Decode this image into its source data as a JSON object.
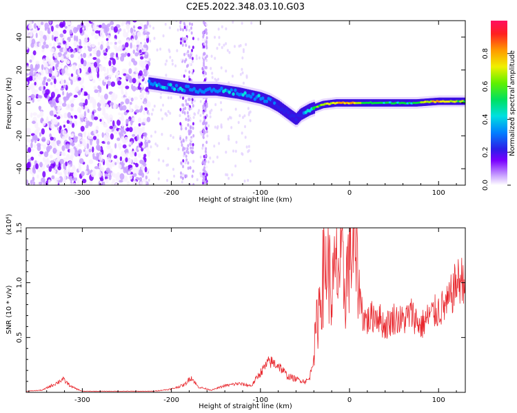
{
  "title": "C2E5.2022.348.03.10.G03",
  "chart_data": [
    {
      "type": "heatmap",
      "xlabel": "Height of straight line (km)",
      "ylabel": "Frequency (Hz)",
      "xlim": [
        -363,
        130
      ],
      "ylim": [
        -50,
        50
      ],
      "x_ticks": [
        -300,
        -200,
        -100,
        0,
        100
      ],
      "x_tick_labels": [
        "-300",
        "-200",
        "-100",
        "0",
        "100"
      ],
      "y_ticks": [
        -40,
        -20,
        0,
        20,
        40
      ],
      "y_tick_labels": [
        "-40",
        "-20",
        "0",
        "20",
        "40"
      ],
      "colorbar": {
        "label": "Normalized spectral amplitude",
        "range": [
          0,
          1
        ],
        "ticks": [
          0.0,
          0.2,
          0.4,
          0.6,
          0.8
        ],
        "tick_labels": [
          "0.0",
          "0.2",
          "0.4",
          "0.6",
          "0.8"
        ],
        "colors": [
          "#f8f0ff",
          "#c8a0ff",
          "#7a00ff",
          "#2a1ee8",
          "#0080ff",
          "#00e0e0",
          "#00e040",
          "#a8f000",
          "#f0f000",
          "#ff9a00",
          "#ff2020",
          "#ff1060"
        ]
      },
      "ridge": {
        "x": [
          -225,
          -200,
          -175,
          -150,
          -125,
          -100,
          -90,
          -80,
          -70,
          -60,
          -55,
          -45,
          -30,
          -15,
          0,
          25,
          50,
          75,
          100,
          130
        ],
        "frequency": [
          12,
          10,
          8,
          8,
          6,
          3,
          1,
          -2,
          -6,
          -10,
          -7,
          -4,
          -1,
          0,
          0,
          0,
          0,
          0,
          1,
          1
        ],
        "amplitude": [
          0.4,
          0.45,
          0.4,
          0.4,
          0.42,
          0.42,
          0.38,
          0.3,
          0.3,
          0.28,
          0.3,
          0.55,
          0.7,
          0.85,
          0.88,
          0.6,
          0.55,
          0.6,
          0.85,
          0.6
        ]
      },
      "noise_region_x": [
        -363,
        -225
      ],
      "noise_bands_x": [
        [
          -190,
          -175
        ],
        [
          -165,
          -160
        ]
      ]
    },
    {
      "type": "line",
      "xlabel": "Height of straight line (km)",
      "ylabel": "SNR (10 * v/v)",
      "scale_label": "(x10⁴)",
      "xlim": [
        -363,
        130
      ],
      "ylim": [
        0,
        1.5
      ],
      "x_ticks": [
        -300,
        -200,
        -100,
        0,
        100
      ],
      "x_tick_labels": [
        "-300",
        "-200",
        "-100",
        "0",
        "100"
      ],
      "y_ticks": [
        0.5,
        1.0,
        1.5
      ],
      "y_tick_labels": [
        "0.5",
        "1.0",
        "1.5"
      ],
      "series": [
        {
          "color": "#e8262c",
          "x": [
            -363,
            -345,
            -330,
            -322,
            -312,
            -300,
            -260,
            -220,
            -200,
            -185,
            -178,
            -170,
            -155,
            -140,
            -125,
            -110,
            -100,
            -90,
            -80,
            -70,
            -60,
            -50,
            -45,
            -40,
            -35,
            -30,
            -25,
            -20,
            -15,
            -10,
            -5,
            0,
            5,
            10,
            15,
            20,
            30,
            40,
            50,
            60,
            70,
            80,
            90,
            100,
            110,
            120,
            130
          ],
          "y": [
            0.01,
            0.02,
            0.08,
            0.12,
            0.05,
            0.01,
            0.01,
            0.01,
            0.03,
            0.07,
            0.14,
            0.05,
            0.02,
            0.06,
            0.08,
            0.06,
            0.18,
            0.28,
            0.25,
            0.15,
            0.12,
            0.1,
            0.12,
            0.35,
            0.75,
            1.05,
            1.2,
            0.9,
            1.1,
            1.15,
            0.95,
            1.25,
            1.35,
            1.0,
            0.7,
            0.65,
            0.72,
            0.6,
            0.68,
            0.65,
            0.72,
            0.6,
            0.7,
            0.75,
            0.8,
            1.0,
            1.05
          ]
        }
      ]
    }
  ]
}
